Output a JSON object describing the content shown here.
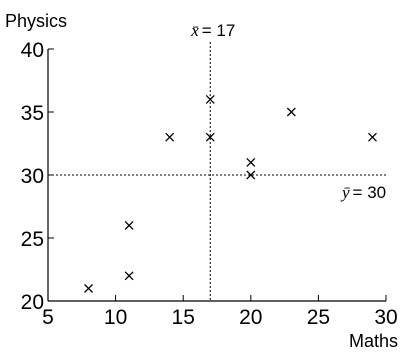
{
  "chart_data": {
    "type": "scatter",
    "xlabel": "Maths",
    "ylabel": "Physics",
    "xlim": [
      5,
      30
    ],
    "ylim": [
      20,
      40
    ],
    "xticks": [
      5,
      10,
      15,
      20,
      25,
      30
    ],
    "yticks": [
      20,
      25,
      30,
      35,
      40
    ],
    "marker": "x",
    "grid": false,
    "points": [
      {
        "x": 8,
        "y": 21
      },
      {
        "x": 11,
        "y": 22
      },
      {
        "x": 11,
        "y": 26
      },
      {
        "x": 14,
        "y": 33
      },
      {
        "x": 17,
        "y": 33
      },
      {
        "x": 17,
        "y": 36
      },
      {
        "x": 20,
        "y": 30
      },
      {
        "x": 20,
        "y": 31
      },
      {
        "x": 23,
        "y": 35
      },
      {
        "x": 29,
        "y": 33
      }
    ],
    "mean_lines": {
      "x": {
        "value": 17,
        "symbol": "x̄",
        "text": "= 17"
      },
      "y": {
        "value": 30,
        "symbol": "ȳ",
        "text": "= 30"
      }
    }
  }
}
